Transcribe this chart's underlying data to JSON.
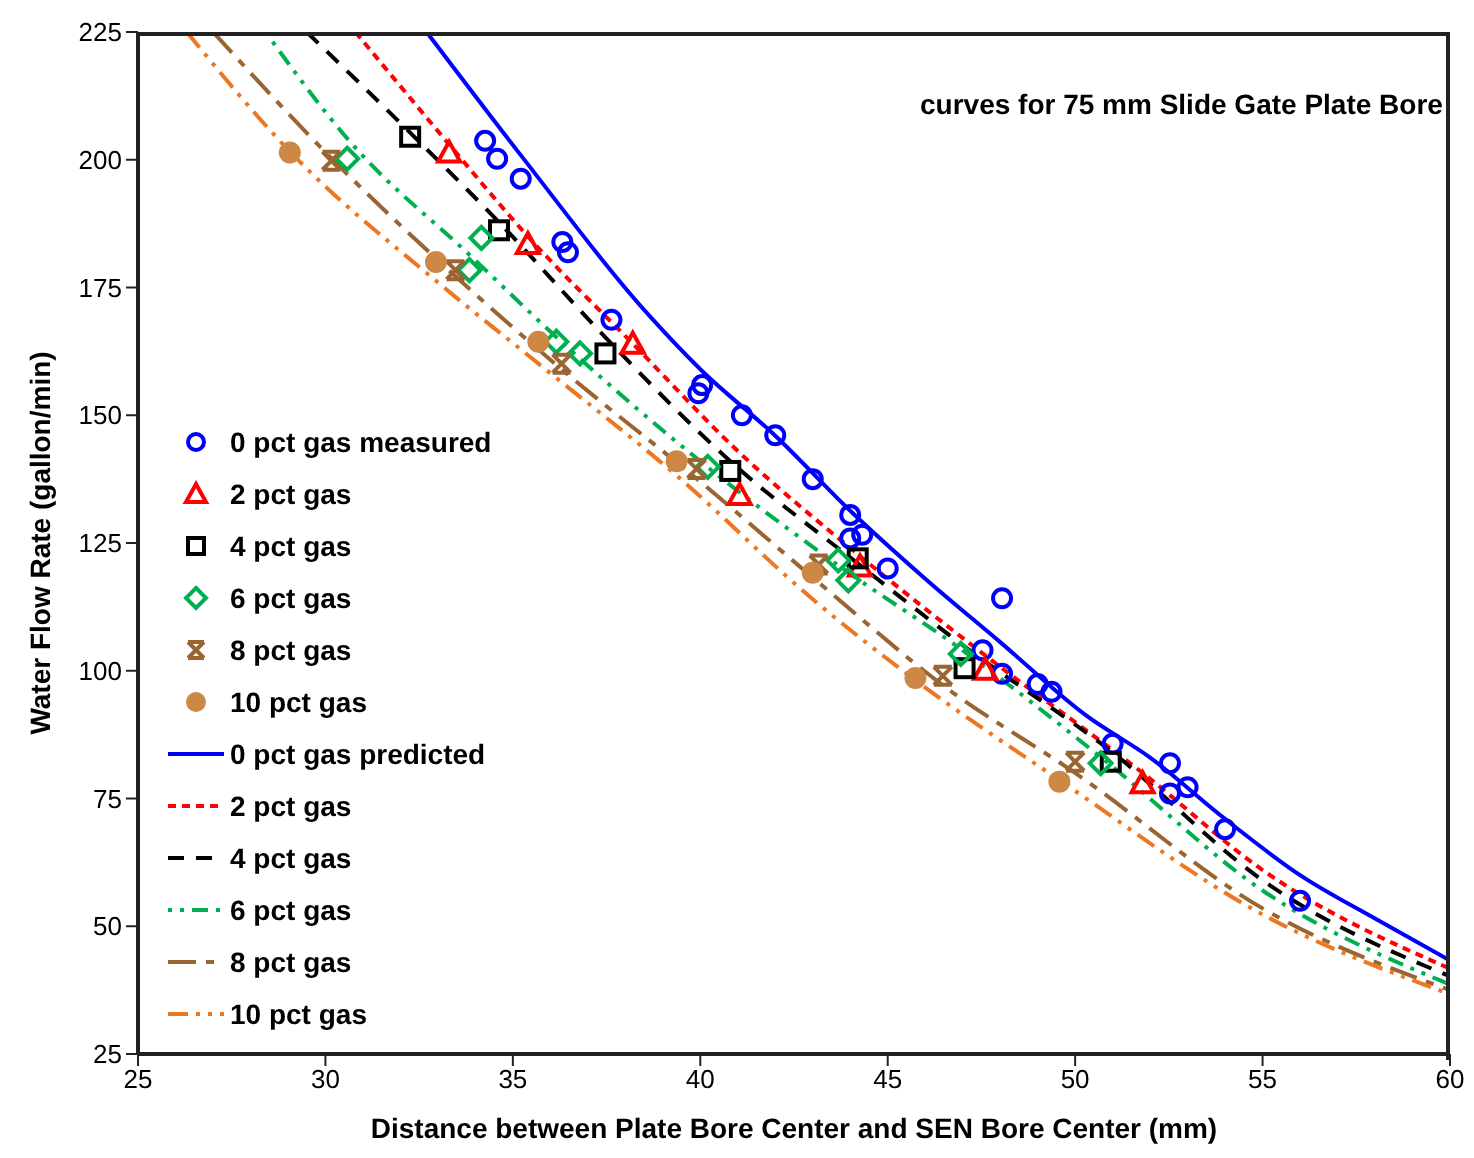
{
  "chart_data": {
    "type": "scatter",
    "title": "curves for 75 mm Slide Gate Plate Bore",
    "xlabel": "Distance between Plate Bore Center and SEN Bore Center (mm)",
    "ylabel": "Water Flow Rate (gallon/min)",
    "xlim": [
      25,
      60
    ],
    "xticks": [
      25,
      30,
      35,
      40,
      45,
      50,
      55,
      60
    ],
    "ylim": [
      25,
      225
    ],
    "yticks": [
      25,
      50,
      75,
      100,
      125,
      150,
      175,
      200,
      225
    ],
    "legend": "left",
    "series": [
      {
        "name": "0 pct gas measured",
        "marker": "circle",
        "color": "#0000ff",
        "x": [
          34.26,
          34.58,
          35.21,
          36.32,
          36.47,
          37.63,
          40.05,
          39.95,
          41.11,
          42.0,
          43.0,
          44.0,
          44.0,
          44.32,
          45.0,
          48.05,
          47.53,
          48.05,
          49.0,
          49.37,
          51.0,
          52.53,
          52.53,
          53.0,
          54.0,
          56.0
        ],
        "values": [
          203.7,
          200.2,
          196.3,
          183.9,
          181.9,
          168.7,
          155.9,
          154.3,
          150.0,
          146.1,
          137.5,
          130.5,
          125.9,
          126.6,
          120.0,
          114.2,
          104.0,
          99.4,
          97.4,
          95.9,
          85.7,
          81.9,
          76.0,
          77.2,
          69.0,
          55.0
        ]
      },
      {
        "name": "2 pct gas",
        "marker": "triangle",
        "color": "#ff0000",
        "x": [
          33.3,
          35.4,
          38.2,
          41.05,
          44.26,
          47.6,
          51.8
        ],
        "values": [
          201.4,
          183.5,
          164.0,
          134.4,
          120.4,
          100.2,
          78.0
        ]
      },
      {
        "name": "4 pct gas",
        "marker": "square",
        "color": "#000000",
        "x": [
          32.26,
          34.63,
          37.47,
          40.8,
          44.2,
          47.05,
          50.95
        ],
        "values": [
          204.5,
          186.2,
          162.1,
          139.1,
          122.0,
          100.5,
          82.2
        ]
      },
      {
        "name": "6 pct gas",
        "marker": "diamond",
        "color": "#00b050",
        "x": [
          30.58,
          34.16,
          33.84,
          36.16,
          36.79,
          40.2,
          43.68,
          43.95,
          46.95,
          50.68
        ],
        "values": [
          200.2,
          184.7,
          178.4,
          164.4,
          162.1,
          139.9,
          121.6,
          117.7,
          103.3,
          81.9
        ]
      },
      {
        "name": "8 pct gas",
        "marker": "cross",
        "color": "#996633",
        "x": [
          30.16,
          33.47,
          36.3,
          39.9,
          43.16,
          46.47,
          50.0
        ],
        "values": [
          199.8,
          178.4,
          160.1,
          139.5,
          120.8,
          99.0,
          82.2
        ]
      },
      {
        "name": "10 pct gas",
        "marker": "circle",
        "color": "#cc8844",
        "x": [
          29.05,
          32.95,
          35.68,
          39.37,
          43.0,
          45.74,
          49.58
        ],
        "values": [
          201.4,
          180.0,
          164.4,
          141.0,
          119.2,
          98.6,
          78.3
        ]
      },
      {
        "name": "0 pct gas predicted",
        "type": "line",
        "line_style": "solid",
        "color": "#0000ff",
        "x": [
          32.7,
          35.2,
          38.7,
          40,
          42,
          44,
          46,
          48,
          50.3,
          52,
          54,
          56,
          58,
          60
        ],
        "values": [
          225,
          201,
          169,
          159,
          146,
          131.3,
          118,
          105.6,
          91.2,
          83,
          71,
          60,
          51.5,
          43.3
        ]
      },
      {
        "name": "2 pct gas",
        "type": "line",
        "line_style": "dotted",
        "color": "#ff0000",
        "x": [
          30.8,
          33.3,
          35.4,
          38.2,
          41,
          44,
          47.6,
          51.8,
          55,
          60
        ],
        "values": [
          225,
          203,
          185,
          164,
          143,
          124,
          103,
          80,
          61,
          41.7
        ]
      },
      {
        "name": "4 pct gas",
        "type": "line",
        "line_style": "dashed",
        "color": "#000000",
        "x": [
          29.5,
          32.3,
          34.6,
          37.5,
          40.8,
          44.2,
          47,
          51,
          55,
          60
        ],
        "values": [
          225,
          205,
          188,
          165,
          141,
          121,
          105,
          84,
          59,
          40.2
        ]
      },
      {
        "name": "6 pct gas",
        "type": "line",
        "line_style": "dashed",
        "color": "#00b050",
        "x": [
          28.4,
          30.6,
          33.9,
          36.5,
          40,
          43.8,
          47,
          50.7,
          55,
          60
        ],
        "values": [
          225,
          204,
          181,
          163,
          141,
          120,
          104,
          83,
          57,
          38.6
        ]
      },
      {
        "name": "8 pct gas",
        "type": "line",
        "line_style": "dashed",
        "color": "#996633",
        "x": [
          27,
          30.2,
          33.5,
          36.3,
          40,
          43.2,
          46.5,
          50,
          55,
          60
        ],
        "values": [
          225,
          200,
          177,
          159,
          137,
          117,
          97,
          80,
          53.5,
          37.5
        ]
      },
      {
        "name": "10 pct gas",
        "type": "line",
        "line_style": "dashed",
        "color": "#ee7722",
        "x": [
          26.3,
          29,
          33,
          35.7,
          39.4,
          43,
          45.8,
          49.6,
          55,
          60
        ],
        "values": [
          225,
          202,
          176,
          160,
          138,
          114,
          97.8,
          78.5,
          52.3,
          36.7
        ]
      }
    ]
  }
}
